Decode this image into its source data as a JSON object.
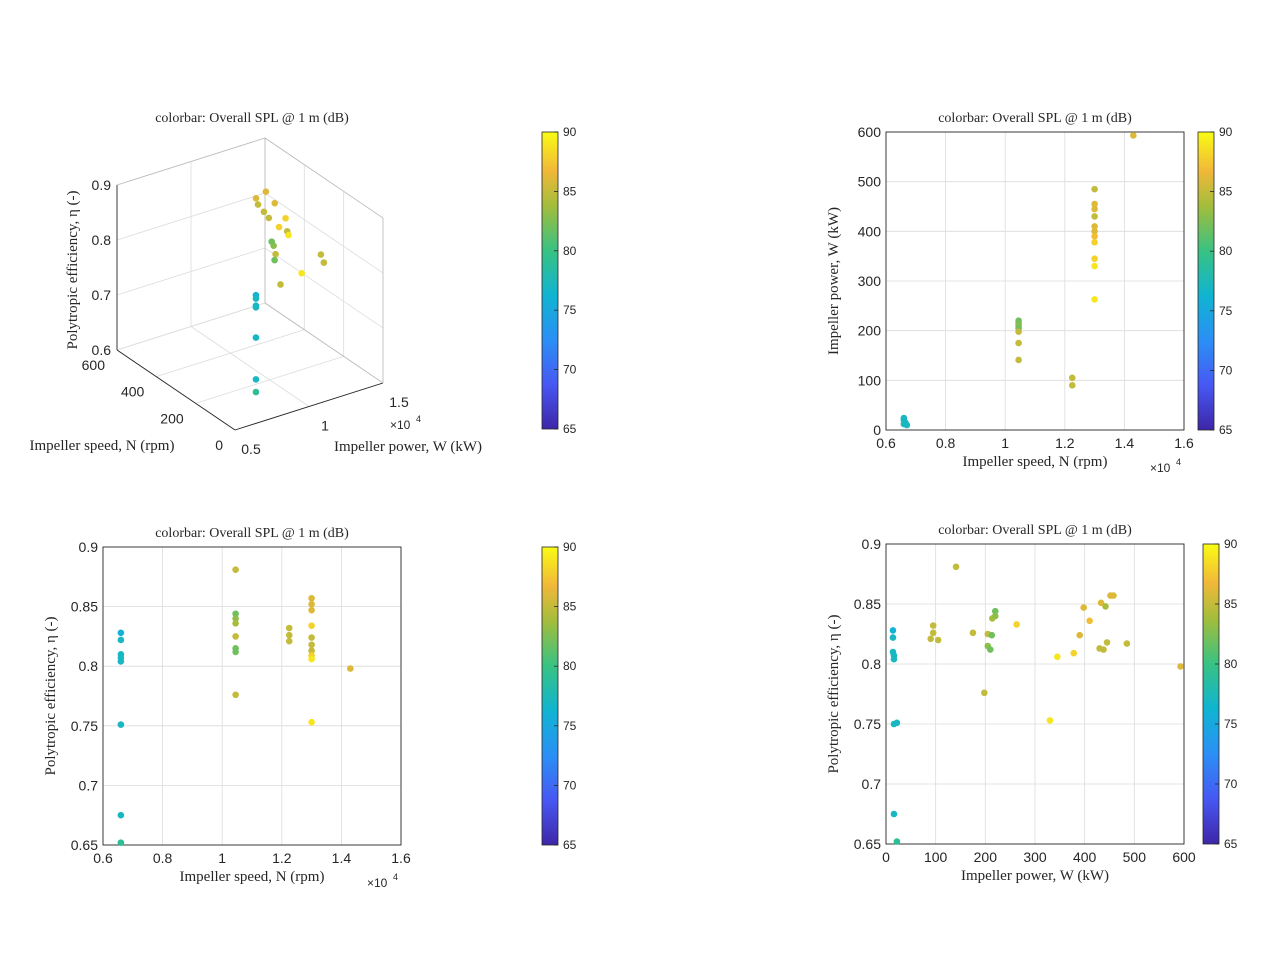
{
  "chart_data": [
    {
      "type": "scatter",
      "projection": "3d",
      "title": "colorbar: Overall SPL @ 1 m (dB)",
      "xlabel": "Impeller power, W (kW)",
      "ylabel": "Impeller speed, N (rpm)",
      "zlabel": "Polytropic efficiency, η (-)",
      "x_exponent_label": "×10",
      "x_exponent_power": "4",
      "xlim": [
        0.5,
        1.5
      ],
      "ylim": [
        0,
        600
      ],
      "zlim": [
        0.6,
        0.9
      ],
      "xticks": [
        "0.5",
        "1",
        "1.5"
      ],
      "yticks": [
        "0",
        "200",
        "400",
        "600"
      ],
      "zticks": [
        "0.6",
        "0.7",
        "0.8",
        "0.9"
      ],
      "grid": true,
      "colorbar": {
        "min": 65,
        "max": 90,
        "ticks": [
          "65",
          "70",
          "75",
          "80",
          "85",
          "90"
        ]
      },
      "points": [
        {
          "x": 0.66,
          "y": 14,
          "z": 0.828,
          "c": 76
        },
        {
          "x": 0.66,
          "y": 14,
          "z": 0.822,
          "c": 77
        },
        {
          "x": 0.66,
          "y": 14,
          "z": 0.809,
          "c": 77
        },
        {
          "x": 0.66,
          "y": 14,
          "z": 0.806,
          "c": 77
        },
        {
          "x": 0.66,
          "y": 14,
          "z": 0.751,
          "c": 77
        },
        {
          "x": 0.66,
          "y": 14,
          "z": 0.675,
          "c": 77
        },
        {
          "x": 0.66,
          "y": 14,
          "z": 0.652,
          "c": 79
        },
        {
          "x": 1.04,
          "y": 141,
          "z": 0.881,
          "c": 85
        },
        {
          "x": 1.04,
          "y": 175,
          "z": 0.776,
          "c": 85
        },
        {
          "x": 1.04,
          "y": 200,
          "z": 0.825,
          "c": 85
        },
        {
          "x": 1.04,
          "y": 210,
          "z": 0.838,
          "c": 83
        },
        {
          "x": 1.04,
          "y": 220,
          "z": 0.843,
          "c": 82
        },
        {
          "x": 1.04,
          "y": 205,
          "z": 0.813,
          "c": 82
        },
        {
          "x": 1.22,
          "y": 90,
          "z": 0.821,
          "c": 85
        },
        {
          "x": 1.22,
          "y": 105,
          "z": 0.832,
          "c": 85
        },
        {
          "x": 1.3,
          "y": 263,
          "z": 0.753,
          "c": 89
        },
        {
          "x": 1.3,
          "y": 330,
          "z": 0.806,
          "c": 89
        },
        {
          "x": 1.3,
          "y": 345,
          "z": 0.833,
          "c": 88
        },
        {
          "x": 1.3,
          "y": 378,
          "z": 0.809,
          "c": 88
        },
        {
          "x": 1.3,
          "y": 400,
          "z": 0.847,
          "c": 86
        },
        {
          "x": 1.3,
          "y": 430,
          "z": 0.813,
          "c": 85
        },
        {
          "x": 1.3,
          "y": 445,
          "z": 0.857,
          "c": 86
        },
        {
          "x": 1.3,
          "y": 455,
          "z": 0.818,
          "c": 85
        },
        {
          "x": 1.3,
          "y": 485,
          "z": 0.824,
          "c": 85
        },
        {
          "x": 1.43,
          "y": 593,
          "z": 0.798,
          "c": 86
        }
      ]
    },
    {
      "type": "scatter",
      "title": "colorbar: Overall SPL @ 1 m (dB)",
      "xlabel": "Impeller speed, N (rpm)",
      "ylabel": "Impeller power, W (kW)",
      "x_exponent_label": "×10",
      "x_exponent_power": "4",
      "xlim": [
        0.6,
        1.6
      ],
      "ylim": [
        0,
        600
      ],
      "xticks": [
        "0.6",
        "0.8",
        "1",
        "1.2",
        "1.4",
        "1.6"
      ],
      "yticks": [
        "0",
        "100",
        "200",
        "300",
        "400",
        "500",
        "600"
      ],
      "grid": true,
      "colorbar": {
        "min": 65,
        "max": 90,
        "ticks": [
          "65",
          "70",
          "75",
          "80",
          "85",
          "90"
        ]
      },
      "points": [
        {
          "x": 0.66,
          "y": 24,
          "c": 77
        },
        {
          "x": 0.66,
          "y": 20,
          "c": 77
        },
        {
          "x": 0.665,
          "y": 15,
          "c": 77
        },
        {
          "x": 0.66,
          "y": 12,
          "c": 77
        },
        {
          "x": 0.67,
          "y": 10,
          "c": 77
        },
        {
          "x": 1.045,
          "y": 220,
          "c": 82
        },
        {
          "x": 1.045,
          "y": 214,
          "c": 82
        },
        {
          "x": 1.045,
          "y": 210,
          "c": 83
        },
        {
          "x": 1.045,
          "y": 205,
          "c": 82
        },
        {
          "x": 1.045,
          "y": 198,
          "c": 85
        },
        {
          "x": 1.045,
          "y": 175,
          "c": 85
        },
        {
          "x": 1.045,
          "y": 141,
          "c": 85
        },
        {
          "x": 1.225,
          "y": 105,
          "c": 85
        },
        {
          "x": 1.225,
          "y": 90,
          "c": 85
        },
        {
          "x": 1.3,
          "y": 485,
          "c": 85
        },
        {
          "x": 1.3,
          "y": 455,
          "c": 86
        },
        {
          "x": 1.3,
          "y": 445,
          "c": 86
        },
        {
          "x": 1.3,
          "y": 430,
          "c": 85
        },
        {
          "x": 1.3,
          "y": 410,
          "c": 86
        },
        {
          "x": 1.3,
          "y": 400,
          "c": 86
        },
        {
          "x": 1.3,
          "y": 390,
          "c": 87
        },
        {
          "x": 1.3,
          "y": 378,
          "c": 88
        },
        {
          "x": 1.3,
          "y": 345,
          "c": 88
        },
        {
          "x": 1.3,
          "y": 330,
          "c": 89
        },
        {
          "x": 1.3,
          "y": 263,
          "c": 89
        },
        {
          "x": 1.43,
          "y": 593,
          "c": 86
        }
      ]
    },
    {
      "type": "scatter",
      "title": "colorbar: Overall SPL @ 1 m (dB)",
      "xlabel": "Impeller speed, N (rpm)",
      "ylabel": "Polytropic efficiency, η (-)",
      "x_exponent_label": "×10",
      "x_exponent_power": "4",
      "xlim": [
        0.6,
        1.6
      ],
      "ylim": [
        0.65,
        0.9
      ],
      "xticks": [
        "0.6",
        "0.8",
        "1",
        "1.2",
        "1.4",
        "1.6"
      ],
      "yticks": [
        "0.65",
        "0.7",
        "0.75",
        "0.8",
        "0.85",
        "0.9"
      ],
      "grid": true,
      "colorbar": {
        "min": 65,
        "max": 90,
        "ticks": [
          "65",
          "70",
          "75",
          "80",
          "85",
          "90"
        ]
      },
      "points": [
        {
          "x": 0.66,
          "y": 0.828,
          "c": 76
        },
        {
          "x": 0.66,
          "y": 0.822,
          "c": 77
        },
        {
          "x": 0.66,
          "y": 0.81,
          "c": 77
        },
        {
          "x": 0.66,
          "y": 0.807,
          "c": 77
        },
        {
          "x": 0.66,
          "y": 0.804,
          "c": 77
        },
        {
          "x": 0.66,
          "y": 0.751,
          "c": 77
        },
        {
          "x": 0.66,
          "y": 0.675,
          "c": 77
        },
        {
          "x": 0.66,
          "y": 0.652,
          "c": 79
        },
        {
          "x": 1.045,
          "y": 0.881,
          "c": 85
        },
        {
          "x": 1.045,
          "y": 0.844,
          "c": 82
        },
        {
          "x": 1.045,
          "y": 0.84,
          "c": 83
        },
        {
          "x": 1.045,
          "y": 0.836,
          "c": 84
        },
        {
          "x": 1.045,
          "y": 0.825,
          "c": 85
        },
        {
          "x": 1.045,
          "y": 0.815,
          "c": 82
        },
        {
          "x": 1.045,
          "y": 0.812,
          "c": 82
        },
        {
          "x": 1.045,
          "y": 0.776,
          "c": 85
        },
        {
          "x": 1.225,
          "y": 0.832,
          "c": 85
        },
        {
          "x": 1.225,
          "y": 0.826,
          "c": 85
        },
        {
          "x": 1.225,
          "y": 0.821,
          "c": 85
        },
        {
          "x": 1.3,
          "y": 0.857,
          "c": 86
        },
        {
          "x": 1.3,
          "y": 0.852,
          "c": 86
        },
        {
          "x": 1.3,
          "y": 0.847,
          "c": 86
        },
        {
          "x": 1.3,
          "y": 0.834,
          "c": 88
        },
        {
          "x": 1.3,
          "y": 0.824,
          "c": 85
        },
        {
          "x": 1.3,
          "y": 0.818,
          "c": 85
        },
        {
          "x": 1.3,
          "y": 0.813,
          "c": 85
        },
        {
          "x": 1.3,
          "y": 0.809,
          "c": 88
        },
        {
          "x": 1.3,
          "y": 0.806,
          "c": 89
        },
        {
          "x": 1.3,
          "y": 0.753,
          "c": 89
        },
        {
          "x": 1.43,
          "y": 0.798,
          "c": 86
        }
      ]
    },
    {
      "type": "scatter",
      "title": "colorbar: Overall SPL @ 1 m (dB)",
      "xlabel": "Impeller power, W (kW)",
      "ylabel": "Polytropic efficiency, η (-)",
      "xlim": [
        0,
        600
      ],
      "ylim": [
        0.65,
        0.9
      ],
      "xticks": [
        "0",
        "100",
        "200",
        "300",
        "400",
        "500",
        "600"
      ],
      "yticks": [
        "0.65",
        "0.7",
        "0.75",
        "0.8",
        "0.85",
        "0.9"
      ],
      "grid": true,
      "colorbar": {
        "min": 65,
        "max": 90,
        "ticks": [
          "65",
          "70",
          "75",
          "80",
          "85",
          "90"
        ]
      },
      "points": [
        {
          "x": 14,
          "y": 0.828,
          "c": 76
        },
        {
          "x": 14,
          "y": 0.822,
          "c": 77
        },
        {
          "x": 14,
          "y": 0.81,
          "c": 77
        },
        {
          "x": 16,
          "y": 0.807,
          "c": 77
        },
        {
          "x": 16,
          "y": 0.804,
          "c": 77
        },
        {
          "x": 16,
          "y": 0.75,
          "c": 77
        },
        {
          "x": 22,
          "y": 0.751,
          "c": 77
        },
        {
          "x": 16,
          "y": 0.675,
          "c": 77
        },
        {
          "x": 22,
          "y": 0.652,
          "c": 79
        },
        {
          "x": 90,
          "y": 0.821,
          "c": 85
        },
        {
          "x": 95,
          "y": 0.832,
          "c": 85
        },
        {
          "x": 95,
          "y": 0.826,
          "c": 85
        },
        {
          "x": 105,
          "y": 0.82,
          "c": 85
        },
        {
          "x": 141,
          "y": 0.881,
          "c": 85
        },
        {
          "x": 175,
          "y": 0.826,
          "c": 85
        },
        {
          "x": 198,
          "y": 0.776,
          "c": 85
        },
        {
          "x": 205,
          "y": 0.825,
          "c": 85
        },
        {
          "x": 205,
          "y": 0.815,
          "c": 83
        },
        {
          "x": 210,
          "y": 0.812,
          "c": 82
        },
        {
          "x": 213,
          "y": 0.824,
          "c": 82
        },
        {
          "x": 214,
          "y": 0.838,
          "c": 84
        },
        {
          "x": 220,
          "y": 0.844,
          "c": 82
        },
        {
          "x": 220,
          "y": 0.84,
          "c": 83
        },
        {
          "x": 263,
          "y": 0.833,
          "c": 88
        },
        {
          "x": 330,
          "y": 0.753,
          "c": 89
        },
        {
          "x": 345,
          "y": 0.806,
          "c": 89
        },
        {
          "x": 378,
          "y": 0.809,
          "c": 88
        },
        {
          "x": 390,
          "y": 0.824,
          "c": 86
        },
        {
          "x": 398,
          "y": 0.847,
          "c": 86
        },
        {
          "x": 410,
          "y": 0.836,
          "c": 87
        },
        {
          "x": 430,
          "y": 0.813,
          "c": 85
        },
        {
          "x": 433,
          "y": 0.851,
          "c": 86
        },
        {
          "x": 438,
          "y": 0.812,
          "c": 85
        },
        {
          "x": 442,
          "y": 0.848,
          "c": 84
        },
        {
          "x": 445,
          "y": 0.818,
          "c": 85
        },
        {
          "x": 452,
          "y": 0.857,
          "c": 86
        },
        {
          "x": 458,
          "y": 0.857,
          "c": 86
        },
        {
          "x": 485,
          "y": 0.817,
          "c": 85
        },
        {
          "x": 593,
          "y": 0.798,
          "c": 86
        }
      ]
    }
  ]
}
